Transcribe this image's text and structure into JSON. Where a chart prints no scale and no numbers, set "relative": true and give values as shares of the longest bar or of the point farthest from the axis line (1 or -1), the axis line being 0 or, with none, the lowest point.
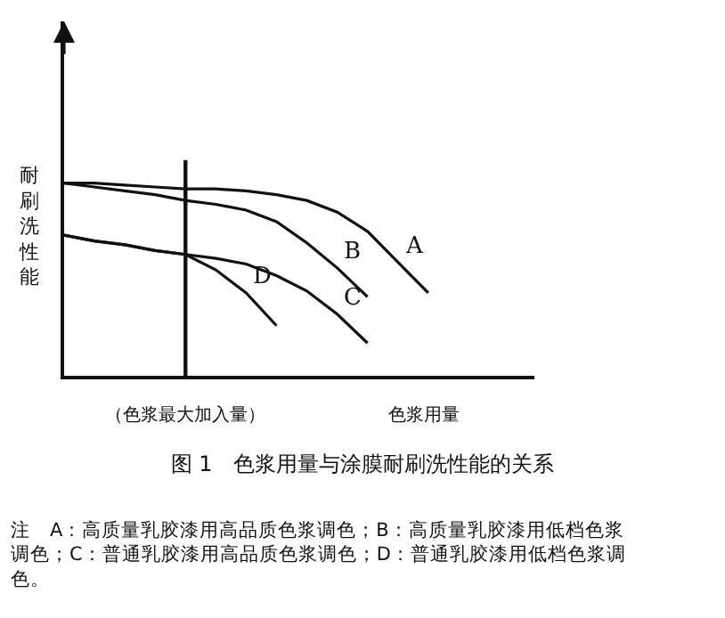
{
  "chart_data": {
    "type": "line",
    "relative": true,
    "title": "图 1　色浆用量与涂膜耐刷洗性能的关系",
    "xlabel": "色浆用量",
    "ylabel": "耐刷洗性能",
    "marker": "none",
    "line_style": "solid",
    "legend": false,
    "categories": [
      null,
      null,
      null,
      null,
      null,
      null,
      null,
      null,
      null,
      null,
      null,
      null,
      null,
      null,
      null,
      null
    ],
    "series": [
      {
        "name": "A",
        "color": "#111111",
        "values": [
          1.0,
          1.0,
          0.99,
          0.98,
          0.97,
          0.97,
          0.96,
          0.94,
          0.91,
          0.85,
          0.75,
          0.59,
          0.43,
          null,
          null,
          null
        ]
      },
      {
        "name": "B",
        "color": "#111111",
        "values": [
          1.0,
          0.98,
          0.96,
          0.94,
          0.91,
          0.89,
          0.86,
          0.8,
          0.69,
          0.56,
          0.41,
          null,
          null,
          null,
          null,
          null
        ]
      },
      {
        "name": "C",
        "color": "#111111",
        "values": [
          0.73,
          0.7,
          0.68,
          0.65,
          0.63,
          0.61,
          0.58,
          0.52,
          0.44,
          0.32,
          0.17,
          null,
          null,
          null,
          null,
          null
        ]
      },
      {
        "name": "D",
        "color": "#111111",
        "values": [
          0.73,
          0.7,
          0.68,
          0.65,
          0.63,
          0.55,
          0.43,
          0.26,
          null,
          null,
          null,
          null,
          null,
          null,
          null,
          null
        ]
      }
    ],
    "annotations": [
      "（色浆最大加入量）",
      "注　A：高质量乳胶漆用高品质色浆调色；B：高质量乳胶漆用低档色浆调色；C：普通乳胶漆用高品质色浆调色；D：普通乳胶漆用低档色浆调色。"
    ]
  }
}
